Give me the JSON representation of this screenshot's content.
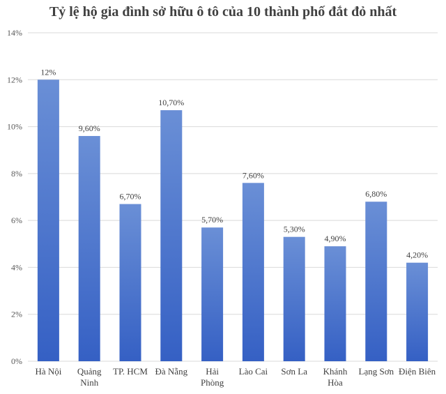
{
  "chart_data": {
    "type": "bar",
    "title": "Tỷ lệ hộ gia đình sở hữu ô tô của 10 thành phố đắt đỏ nhất",
    "xlabel": "",
    "ylabel": "",
    "categories": [
      [
        "Hà Nội"
      ],
      [
        "Quảng",
        "Ninh"
      ],
      [
        "TP. HCM"
      ],
      [
        "Đà Nẵng"
      ],
      [
        "Hải",
        "Phòng"
      ],
      [
        "Lào Cai"
      ],
      [
        "Sơn La"
      ],
      [
        "Khánh",
        "Hòa"
      ],
      [
        "Lạng Sơn"
      ],
      [
        "Điện Biên"
      ]
    ],
    "values": [
      12,
      9.6,
      6.7,
      10.7,
      5.7,
      7.6,
      5.3,
      4.9,
      6.8,
      4.2
    ],
    "data_labels": [
      "12%",
      "9,60%",
      "6,70%",
      "10,70%",
      "5,70%",
      "7,60%",
      "5,30%",
      "4,90%",
      "6,80%",
      "4,20%"
    ],
    "ylim": [
      0,
      14
    ],
    "yticks": [
      0,
      2,
      4,
      6,
      8,
      10,
      12,
      14
    ],
    "ytick_labels": [
      "0%",
      "2%",
      "4%",
      "6%",
      "8%",
      "10%",
      "12%",
      "14%"
    ],
    "grid": true,
    "legend": "none",
    "colors": {
      "bar_top": "#6a8fd6",
      "bar_bottom": "#3560c4",
      "grid": "#d9d9d9",
      "text": "#404040",
      "axis_labels": "#595959"
    }
  }
}
